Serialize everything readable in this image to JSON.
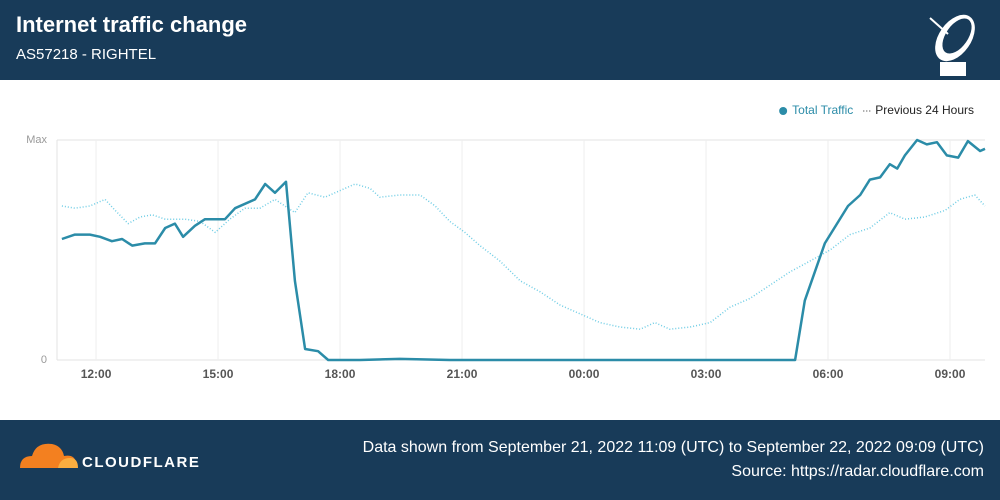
{
  "header": {
    "title": "Internet traffic change",
    "subtitle": "AS57218 - RIGHTEL"
  },
  "chart_data": {
    "type": "line",
    "xlim": [
      0.04,
      22.86
    ],
    "xticks": [
      {
        "value": 1,
        "label": "12:00"
      },
      {
        "value": 4,
        "label": "15:00"
      },
      {
        "value": 7,
        "label": "18:00"
      },
      {
        "value": 10,
        "label": "21:00"
      },
      {
        "value": 13,
        "label": "00:00"
      },
      {
        "value": 16,
        "label": "03:00"
      },
      {
        "value": 19,
        "label": "06:00"
      },
      {
        "value": 22,
        "label": "09:00"
      }
    ],
    "ylim": [
      0,
      1
    ],
    "yticks": [
      0,
      {
        "value": 1,
        "label": "Max"
      }
    ],
    "grid": true,
    "legend": "top-right",
    "series": [
      {
        "name": "Total Traffic",
        "color": "#2b8ca8",
        "style": "solid",
        "x": [
          0.16,
          0.48,
          0.85,
          1.1,
          1.39,
          1.64,
          1.89,
          2.2,
          2.45,
          2.7,
          2.94,
          3.14,
          3.43,
          3.68,
          3.93,
          4.17,
          4.42,
          4.91,
          5.16,
          5.4,
          5.67,
          5.89,
          6.14,
          6.46,
          6.71,
          7.49,
          8.47,
          9.7,
          10.93,
          12.16,
          13.39,
          14.62,
          15.85,
          17.08,
          18.19,
          18.43,
          18.92,
          19.49,
          19.79,
          20.03,
          20.28,
          20.52,
          20.7,
          20.89,
          21.19,
          21.43,
          21.68,
          21.92,
          22.2,
          22.44,
          22.74,
          22.86
        ],
        "values": [
          0.55,
          0.57,
          0.57,
          0.56,
          0.54,
          0.55,
          0.52,
          0.53,
          0.53,
          0.6,
          0.62,
          0.56,
          0.61,
          0.64,
          0.64,
          0.64,
          0.69,
          0.73,
          0.8,
          0.76,
          0.81,
          0.36,
          0.05,
          0.04,
          0,
          0,
          0.005,
          0,
          0,
          0,
          0,
          0,
          0,
          0,
          0,
          0.27,
          0.53,
          0.7,
          0.75,
          0.82,
          0.83,
          0.89,
          0.87,
          0.93,
          1,
          0.98,
          0.99,
          0.93,
          0.92,
          0.995,
          0.95,
          0.96
        ]
      },
      {
        "name": "Previous 24 Hours",
        "color": "#6fcde5",
        "style": "dotted",
        "x": [
          0.16,
          0.48,
          0.85,
          1.22,
          1.47,
          1.79,
          2.08,
          2.38,
          2.7,
          3.19,
          3.56,
          3.93,
          4.29,
          4.66,
          5.03,
          5.4,
          5.89,
          6.21,
          6.63,
          7.0,
          7.37,
          7.74,
          7.98,
          8.47,
          8.97,
          9.34,
          9.7,
          10.07,
          10.44,
          10.93,
          11.43,
          11.92,
          12.41,
          12.9,
          13.39,
          13.88,
          14.38,
          14.74,
          15.11,
          15.61,
          16.1,
          16.59,
          17.08,
          17.57,
          18.06,
          18.56,
          19.05,
          19.54,
          20.03,
          20.52,
          20.89,
          21.38,
          21.88,
          22.24,
          22.61,
          22.86
        ],
        "values": [
          0.7,
          0.69,
          0.7,
          0.73,
          0.68,
          0.62,
          0.65,
          0.66,
          0.64,
          0.64,
          0.63,
          0.58,
          0.64,
          0.69,
          0.69,
          0.73,
          0.67,
          0.76,
          0.74,
          0.77,
          0.8,
          0.78,
          0.74,
          0.75,
          0.75,
          0.7,
          0.63,
          0.58,
          0.52,
          0.45,
          0.36,
          0.31,
          0.25,
          0.21,
          0.17,
          0.15,
          0.14,
          0.17,
          0.14,
          0.15,
          0.17,
          0.24,
          0.28,
          0.34,
          0.4,
          0.45,
          0.5,
          0.57,
          0.6,
          0.67,
          0.64,
          0.65,
          0.68,
          0.73,
          0.75,
          0.7
        ]
      }
    ]
  },
  "footer": {
    "logo": "CLOUDFLARE",
    "range": "Data shown from September 21, 2022 11:09 (UTC) to September 22, 2022 09:09 (UTC)",
    "source": "Source: https://radar.cloudflare.com"
  }
}
